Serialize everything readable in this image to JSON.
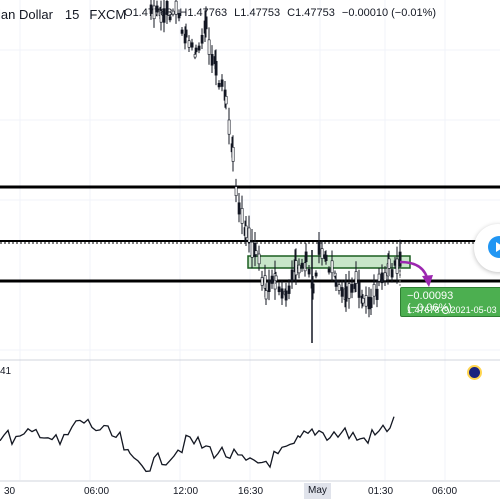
{
  "header": {
    "symbol": "ian Dollar",
    "timeframe": "15",
    "exchange": "FXCM",
    "ohlc": [
      {
        "k": "O",
        "v": "1.47763"
      },
      {
        "k": "H",
        "v": "1.47763"
      },
      {
        "k": "L",
        "v": "1.47753"
      },
      {
        "k": "C",
        "v": "1.47753"
      }
    ],
    "change": "−0.00010 (−0.01%)"
  },
  "prediction": {
    "line1": "−0.00093 (−0.06%)",
    "price": "1.47678",
    "date": "2021-05-03"
  },
  "indicator": {
    "label": "41"
  },
  "xaxis": {
    "ticks": [
      "30",
      "06:00",
      "12:00",
      "16:30",
      "May",
      "01:30",
      "06:00"
    ]
  },
  "colors": {
    "candle": "#131722",
    "horizontal_line": "#000000",
    "zone_fill": "#c8e6c9",
    "zone_border": "#1b5e20",
    "arrow": "#9c27b0",
    "label_bg": "#4caf50",
    "grid": "#f0f3fa"
  },
  "icons": [
    "play-icon",
    "settings-gear-icon",
    "clock-icon"
  ]
}
